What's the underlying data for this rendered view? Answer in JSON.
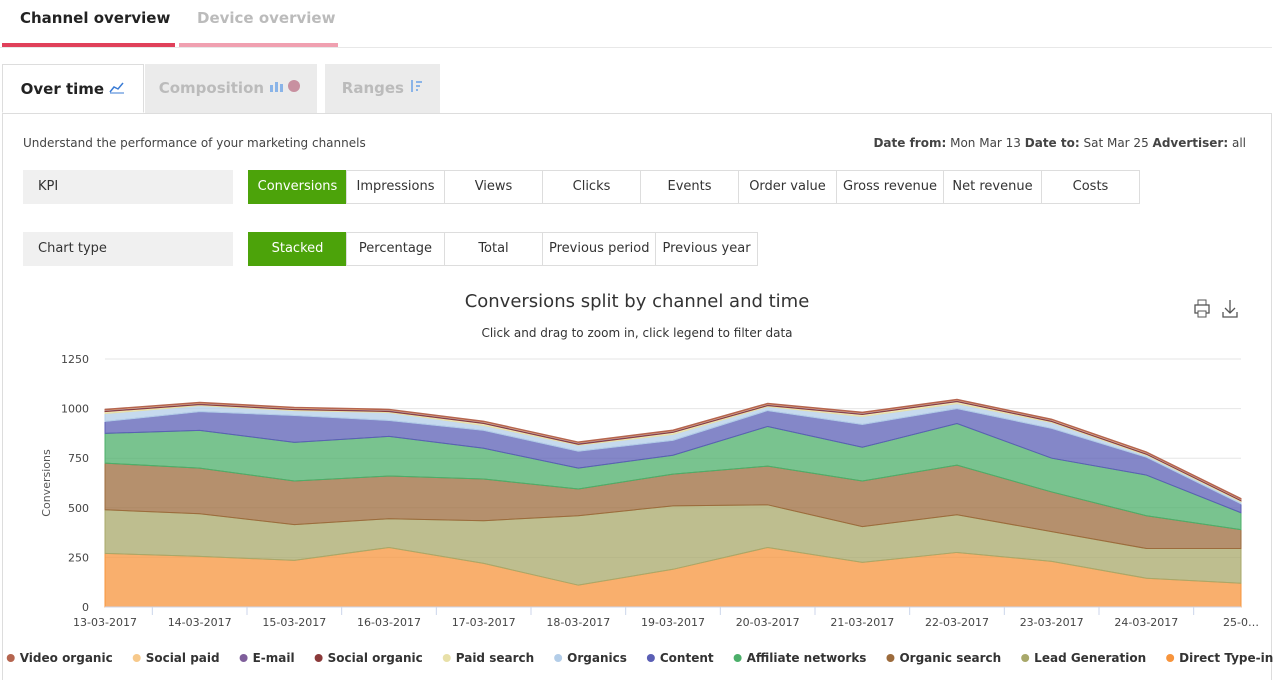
{
  "tabs": [
    "Channel overview",
    "Device overview"
  ],
  "subtabs": [
    "Over time",
    "Composition",
    "Ranges"
  ],
  "description": "Understand the performance of your marketing channels",
  "date_info": {
    "from_label": "Date from:",
    "from": "Mon Mar 13",
    "to_label": "Date to:",
    "to": "Sat Mar 25",
    "advertiser_label": "Advertiser:",
    "advertiser": "all"
  },
  "kpi": {
    "label": "KPI",
    "options": [
      "Conversions",
      "Impressions",
      "Views",
      "Clicks",
      "Events",
      "Order value",
      "Gross revenue",
      "Net revenue",
      "Costs"
    ],
    "active": 0
  },
  "chart_type_selector": {
    "label": "Chart type",
    "options": [
      "Stacked",
      "Percentage",
      "Total",
      "Previous period",
      "Previous year"
    ],
    "active": 0
  },
  "chart_data": {
    "type": "area",
    "stacked": true,
    "title": "Conversions split by channel and time",
    "subtitle": "Click and drag to zoom in, click legend to filter data",
    "y_label": "Conversions",
    "categories": [
      "13-03-2017",
      "14-03-2017",
      "15-03-2017",
      "16-03-2017",
      "17-03-2017",
      "18-03-2017",
      "19-03-2017",
      "20-03-2017",
      "21-03-2017",
      "22-03-2017",
      "23-03-2017",
      "24-03-2017",
      "25-0…"
    ],
    "ylim": [
      0,
      1250
    ],
    "yticks": [
      0,
      250,
      500,
      750,
      1000,
      1250
    ],
    "grid": true,
    "series": [
      {
        "name": "Video organic",
        "color": "#b5654f",
        "values": [
          3,
          3,
          3,
          3,
          3,
          3,
          3,
          3,
          3,
          3,
          3,
          3,
          3
        ]
      },
      {
        "name": "Social paid",
        "color": "#f7c98b",
        "values": [
          2,
          2,
          2,
          2,
          2,
          2,
          2,
          2,
          2,
          2,
          2,
          2,
          2
        ]
      },
      {
        "name": "E-mail",
        "color": "#7f5f9b",
        "values": [
          2,
          2,
          2,
          2,
          2,
          2,
          2,
          2,
          2,
          2,
          2,
          2,
          2
        ]
      },
      {
        "name": "Social organic",
        "color": "#8b3a3a",
        "values": [
          5,
          5,
          5,
          5,
          5,
          5,
          5,
          5,
          5,
          5,
          5,
          5,
          5
        ]
      },
      {
        "name": "Paid search",
        "color": "#e8e0a8",
        "values": [
          10,
          5,
          5,
          5,
          10,
          5,
          10,
          5,
          10,
          10,
          5,
          5,
          5
        ]
      },
      {
        "name": "Organics",
        "color": "#b3cde8",
        "values": [
          40,
          30,
          25,
          40,
          25,
          30,
          30,
          20,
          40,
          25,
          30,
          10,
          10
        ]
      },
      {
        "name": "Content",
        "color": "#5b5fb5",
        "values": [
          60,
          95,
          135,
          80,
          90,
          85,
          75,
          80,
          115,
          75,
          150,
          90,
          45
        ]
      },
      {
        "name": "Affiliate networks",
        "color": "#4caf6a",
        "values": [
          150,
          190,
          195,
          200,
          155,
          105,
          95,
          200,
          170,
          210,
          170,
          205,
          85
        ]
      },
      {
        "name": "Organic search",
        "color": "#9c6b3c",
        "values": [
          235,
          230,
          220,
          215,
          210,
          135,
          160,
          195,
          230,
          250,
          200,
          165,
          95
        ]
      },
      {
        "name": "Lead Generation",
        "color": "#a8a86a",
        "values": [
          220,
          215,
          180,
          145,
          215,
          350,
          320,
          215,
          180,
          190,
          150,
          150,
          175
        ]
      },
      {
        "name": "Direct Type-in",
        "color": "#f7943c",
        "values": [
          270,
          255,
          235,
          300,
          220,
          110,
          190,
          300,
          225,
          275,
          230,
          145,
          120
        ]
      }
    ]
  }
}
